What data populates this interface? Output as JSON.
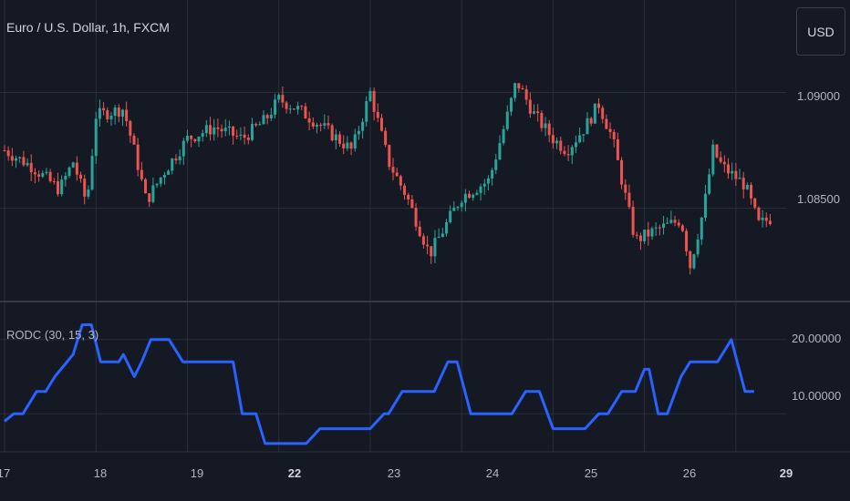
{
  "header": {
    "title": "Euro / U.S. Dollar, 1h, FXCM",
    "currency_button": "USD"
  },
  "indicator": {
    "label": "RODC (30, 15, 3)"
  },
  "price_axis": {
    "ticks": [
      "1.09000",
      "1.08500"
    ]
  },
  "indicator_axis": {
    "ticks": [
      "20.00000",
      "10.00000"
    ]
  },
  "time_axis": {
    "ticks": [
      {
        "label": "17",
        "bold": false
      },
      {
        "label": "18",
        "bold": false
      },
      {
        "label": "19",
        "bold": false
      },
      {
        "label": "22",
        "bold": true
      },
      {
        "label": "23",
        "bold": false
      },
      {
        "label": "24",
        "bold": false
      },
      {
        "label": "25",
        "bold": false
      },
      {
        "label": "26",
        "bold": false
      },
      {
        "label": "29",
        "bold": true
      }
    ]
  },
  "colors": {
    "background": "#151924",
    "grid": "#2a2e39",
    "up": "#26a69a",
    "down": "#ef5350",
    "indicator_line": "#2962ff"
  },
  "chart_data": {
    "type": "candlestick",
    "title": "Euro / U.S. Dollar, 1h, FXCM",
    "price_ylim": [
      1.081,
      1.094
    ],
    "close_path": [
      {
        "x": 0.0,
        "y": 1.0875
      },
      {
        "x": 0.3,
        "y": 1.0868
      },
      {
        "x": 0.6,
        "y": 1.0858
      },
      {
        "x": 0.75,
        "y": 1.087
      },
      {
        "x": 0.9,
        "y": 1.0852
      },
      {
        "x": 1.0,
        "y": 1.089
      },
      {
        "x": 1.2,
        "y": 1.0892
      },
      {
        "x": 1.3,
        "y": 1.0893
      },
      {
        "x": 1.45,
        "y": 1.087
      },
      {
        "x": 1.55,
        "y": 1.0853
      },
      {
        "x": 1.75,
        "y": 1.0866
      },
      {
        "x": 2.0,
        "y": 1.088
      },
      {
        "x": 2.3,
        "y": 1.0885
      },
      {
        "x": 2.6,
        "y": 1.088
      },
      {
        "x": 2.85,
        "y": 1.0888
      },
      {
        "x": 3.0,
        "y": 1.0897
      },
      {
        "x": 3.2,
        "y": 1.0893
      },
      {
        "x": 3.45,
        "y": 1.0886
      },
      {
        "x": 3.8,
        "y": 1.0875
      },
      {
        "x": 4.0,
        "y": 1.09
      },
      {
        "x": 4.2,
        "y": 1.087
      },
      {
        "x": 4.4,
        "y": 1.0855
      },
      {
        "x": 4.65,
        "y": 1.083
      },
      {
        "x": 5.0,
        "y": 1.0855
      },
      {
        "x": 5.3,
        "y": 1.0862
      },
      {
        "x": 5.5,
        "y": 1.089
      },
      {
        "x": 5.6,
        "y": 1.0905
      },
      {
        "x": 5.8,
        "y": 1.089
      },
      {
        "x": 6.0,
        "y": 1.088
      },
      {
        "x": 6.15,
        "y": 1.0875
      },
      {
        "x": 6.35,
        "y": 1.0885
      },
      {
        "x": 6.5,
        "y": 1.0895
      },
      {
        "x": 6.65,
        "y": 1.088
      },
      {
        "x": 6.9,
        "y": 1.0836
      },
      {
        "x": 7.1,
        "y": 1.084
      },
      {
        "x": 7.4,
        "y": 1.0845
      },
      {
        "x": 7.5,
        "y": 1.0825
      },
      {
        "x": 7.65,
        "y": 1.085
      },
      {
        "x": 7.75,
        "y": 1.0875
      },
      {
        "x": 7.85,
        "y": 1.0868
      },
      {
        "x": 8.1,
        "y": 1.086
      },
      {
        "x": 8.25,
        "y": 1.0843
      },
      {
        "x": 8.4,
        "y": 1.0846
      }
    ],
    "indicator": {
      "name": "RODC (30, 15, 3)",
      "ylim": [
        5,
        25
      ],
      "points": [
        {
          "x": 0.0,
          "y": 9
        },
        {
          "x": 0.1,
          "y": 10
        },
        {
          "x": 0.2,
          "y": 10
        },
        {
          "x": 0.35,
          "y": 13
        },
        {
          "x": 0.45,
          "y": 13
        },
        {
          "x": 0.55,
          "y": 15
        },
        {
          "x": 0.75,
          "y": 18
        },
        {
          "x": 0.85,
          "y": 22
        },
        {
          "x": 0.95,
          "y": 22
        },
        {
          "x": 1.05,
          "y": 17
        },
        {
          "x": 1.25,
          "y": 17
        },
        {
          "x": 1.3,
          "y": 18
        },
        {
          "x": 1.42,
          "y": 15
        },
        {
          "x": 1.5,
          "y": 17
        },
        {
          "x": 1.6,
          "y": 20
        },
        {
          "x": 1.8,
          "y": 20
        },
        {
          "x": 1.95,
          "y": 17
        },
        {
          "x": 2.5,
          "y": 17
        },
        {
          "x": 2.6,
          "y": 10
        },
        {
          "x": 2.75,
          "y": 10
        },
        {
          "x": 2.85,
          "y": 6
        },
        {
          "x": 3.3,
          "y": 6
        },
        {
          "x": 3.45,
          "y": 8
        },
        {
          "x": 4.0,
          "y": 8
        },
        {
          "x": 4.15,
          "y": 10
        },
        {
          "x": 4.2,
          "y": 10
        },
        {
          "x": 4.35,
          "y": 13
        },
        {
          "x": 4.7,
          "y": 13
        },
        {
          "x": 4.85,
          "y": 17
        },
        {
          "x": 4.95,
          "y": 17
        },
        {
          "x": 5.1,
          "y": 10
        },
        {
          "x": 5.55,
          "y": 10
        },
        {
          "x": 5.7,
          "y": 13
        },
        {
          "x": 5.85,
          "y": 13
        },
        {
          "x": 6.0,
          "y": 8
        },
        {
          "x": 6.35,
          "y": 8
        },
        {
          "x": 6.5,
          "y": 10
        },
        {
          "x": 6.6,
          "y": 10
        },
        {
          "x": 6.75,
          "y": 13
        },
        {
          "x": 6.9,
          "y": 13
        },
        {
          "x": 7.0,
          "y": 16
        },
        {
          "x": 7.05,
          "y": 16
        },
        {
          "x": 7.15,
          "y": 10
        },
        {
          "x": 7.25,
          "y": 10
        },
        {
          "x": 7.4,
          "y": 15
        },
        {
          "x": 7.5,
          "y": 17
        },
        {
          "x": 7.8,
          "y": 17
        },
        {
          "x": 7.95,
          "y": 20
        },
        {
          "x": 8.1,
          "y": 13
        },
        {
          "x": 8.2,
          "y": 13
        }
      ]
    }
  }
}
